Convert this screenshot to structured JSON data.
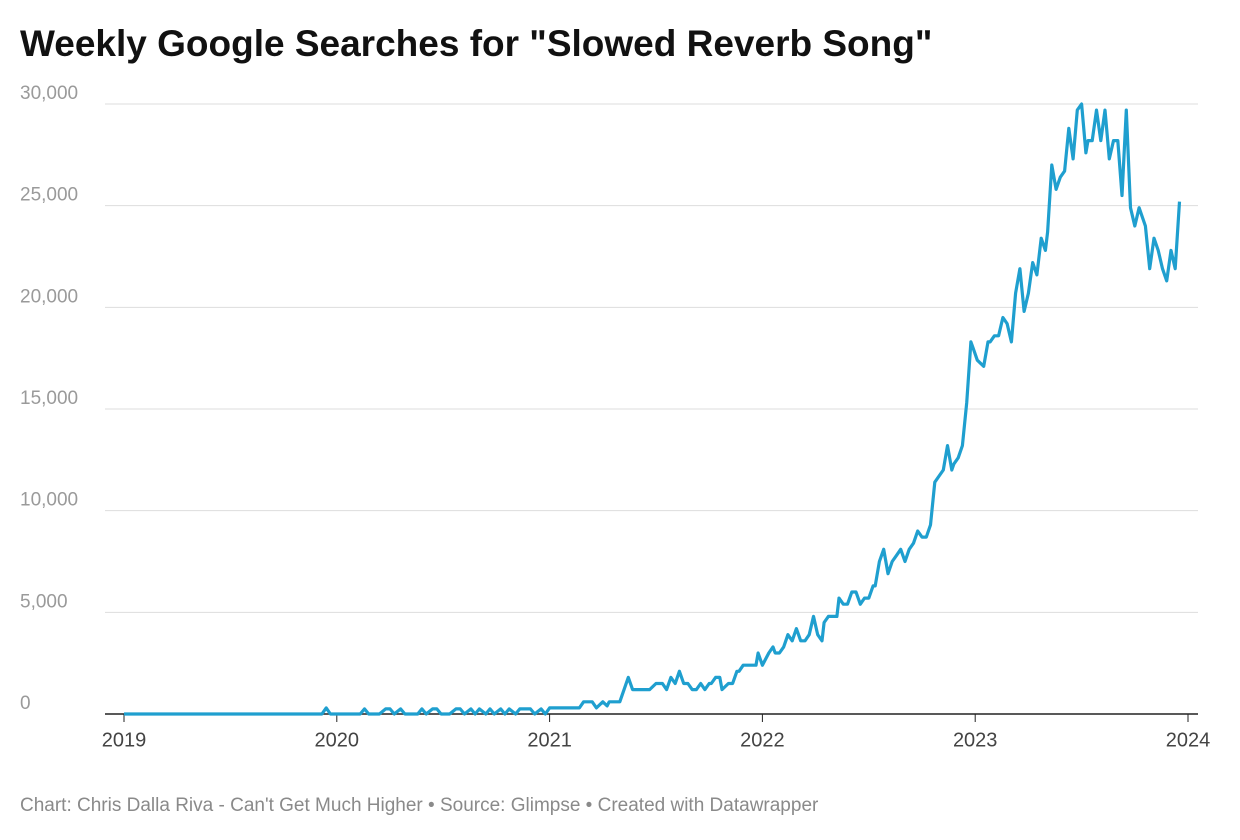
{
  "chart_data": {
    "type": "line",
    "title": "Weekly Google Searches for \"Slowed Reverb Song\"",
    "footer": "Chart: Chris Dalla Riva - Can't Get Much Higher • Source: Glimpse • Created with Datawrapper",
    "xlim": [
      2019,
      2024
    ],
    "xticks": [
      2019,
      2020,
      2021,
      2022,
      2023,
      2024
    ],
    "ylim": [
      0,
      30000
    ],
    "yticks": [
      0,
      {
        "value": 5000,
        "label": "5,000"
      },
      {
        "value": 10000,
        "label": "10,000"
      },
      {
        "value": 15000,
        "label": "15,000"
      },
      {
        "value": 20000,
        "label": "20,000"
      },
      {
        "value": 25000,
        "label": "25,000"
      },
      {
        "value": 30000,
        "label": "30,000"
      }
    ],
    "grid": true,
    "series": [
      {
        "name": "Searches",
        "color": "#1f9fcf",
        "x": [
          2019.0,
          2019.93,
          2019.95,
          2019.97,
          2020.11,
          2020.13,
          2020.15,
          2020.2,
          2020.23,
          2020.25,
          2020.27,
          2020.3,
          2020.32,
          2020.38,
          2020.4,
          2020.42,
          2020.45,
          2020.47,
          2020.49,
          2020.53,
          2020.56,
          2020.58,
          2020.6,
          2020.63,
          2020.65,
          2020.67,
          2020.7,
          2020.72,
          2020.74,
          2020.77,
          2020.79,
          2020.81,
          2020.84,
          2020.86,
          2020.91,
          2020.93,
          2020.96,
          2020.98,
          2021.0,
          2021.14,
          2021.16,
          2021.2,
          2021.22,
          2021.25,
          2021.27,
          2021.28,
          2021.33,
          2021.37,
          2021.39,
          2021.47,
          2021.5,
          2021.53,
          2021.55,
          2021.57,
          2021.59,
          2021.61,
          2021.63,
          2021.65,
          2021.67,
          2021.69,
          2021.71,
          2021.73,
          2021.75,
          2021.76,
          2021.78,
          2021.8,
          2021.81,
          2021.84,
          2021.86,
          2021.88,
          2021.89,
          2021.91,
          2021.97,
          2021.98,
          2022.0,
          2022.03,
          2022.05,
          2022.06,
          2022.08,
          2022.1,
          2022.12,
          2022.14,
          2022.16,
          2022.18,
          2022.2,
          2022.22,
          2022.24,
          2022.26,
          2022.28,
          2022.29,
          2022.31,
          2022.35,
          2022.36,
          2022.38,
          2022.4,
          2022.42,
          2022.44,
          2022.46,
          2022.48,
          2022.5,
          2022.52,
          2022.53,
          2022.55,
          2022.57,
          2022.59,
          2022.61,
          2022.63,
          2022.65,
          2022.67,
          2022.69,
          2022.71,
          2022.73,
          2022.75,
          2022.77,
          2022.79,
          2022.81,
          2022.83,
          2022.85,
          2022.87,
          2022.89,
          2022.9,
          2022.92,
          2022.94,
          2022.96,
          2022.98,
          2022.99,
          2023.01,
          2023.04,
          2023.06,
          2023.07,
          2023.09,
          2023.11,
          2023.13,
          2023.15,
          2023.17,
          2023.19,
          2023.21,
          2023.23,
          2023.25,
          2023.27,
          2023.29,
          2023.31,
          2023.33,
          2023.34,
          2023.36,
          2023.38,
          2023.4,
          2023.42,
          2023.44,
          2023.46,
          2023.48,
          2023.5,
          2023.52,
          2023.53,
          2023.55,
          2023.57,
          2023.59,
          2023.61,
          2023.63,
          2023.65,
          2023.67,
          2023.69,
          2023.71,
          2023.73,
          2023.75,
          2023.77,
          2023.79,
          2023.8,
          2023.82,
          2023.84,
          2023.86,
          2023.88,
          2023.9,
          2023.92,
          2023.94,
          2023.96
        ],
        "values": [
          0,
          0,
          300,
          0,
          0,
          250,
          0,
          0,
          250,
          250,
          0,
          250,
          0,
          0,
          250,
          0,
          250,
          250,
          0,
          0,
          250,
          250,
          0,
          250,
          0,
          250,
          0,
          250,
          0,
          250,
          0,
          250,
          0,
          250,
          250,
          0,
          250,
          0,
          300,
          300,
          600,
          600,
          300,
          600,
          400,
          600,
          600,
          1800,
          1200,
          1200,
          1500,
          1500,
          1200,
          1800,
          1500,
          2100,
          1500,
          1500,
          1200,
          1200,
          1500,
          1200,
          1500,
          1500,
          1800,
          1800,
          1200,
          1500,
          1500,
          2100,
          2100,
          2400,
          2400,
          3000,
          2400,
          3000,
          3300,
          3000,
          3000,
          3300,
          3900,
          3600,
          4200,
          3600,
          3600,
          3900,
          4800,
          3900,
          3600,
          4500,
          4800,
          4800,
          5700,
          5400,
          5400,
          6000,
          6000,
          5400,
          5700,
          5700,
          6300,
          6300,
          7500,
          8100,
          6900,
          7500,
          7800,
          8100,
          7500,
          8100,
          8400,
          9000,
          8700,
          8700,
          9300,
          11400,
          11700,
          12000,
          13200,
          12000,
          12300,
          12600,
          13200,
          15300,
          18300,
          18000,
          17400,
          17100,
          18300,
          18300,
          18600,
          18600,
          19500,
          19200,
          18300,
          20700,
          21900,
          19800,
          20700,
          22200,
          21600,
          23400,
          22800,
          23700,
          27000,
          25800,
          26400,
          26700,
          28800,
          27300,
          29700,
          30000,
          27600,
          28200,
          28200,
          29700,
          28200,
          29700,
          27300,
          28200,
          28200,
          25500,
          29700,
          24900,
          24000,
          24900,
          24300,
          24000,
          21900,
          23400,
          22800,
          21900,
          21300,
          22800,
          21900,
          25200
        ]
      }
    ]
  }
}
